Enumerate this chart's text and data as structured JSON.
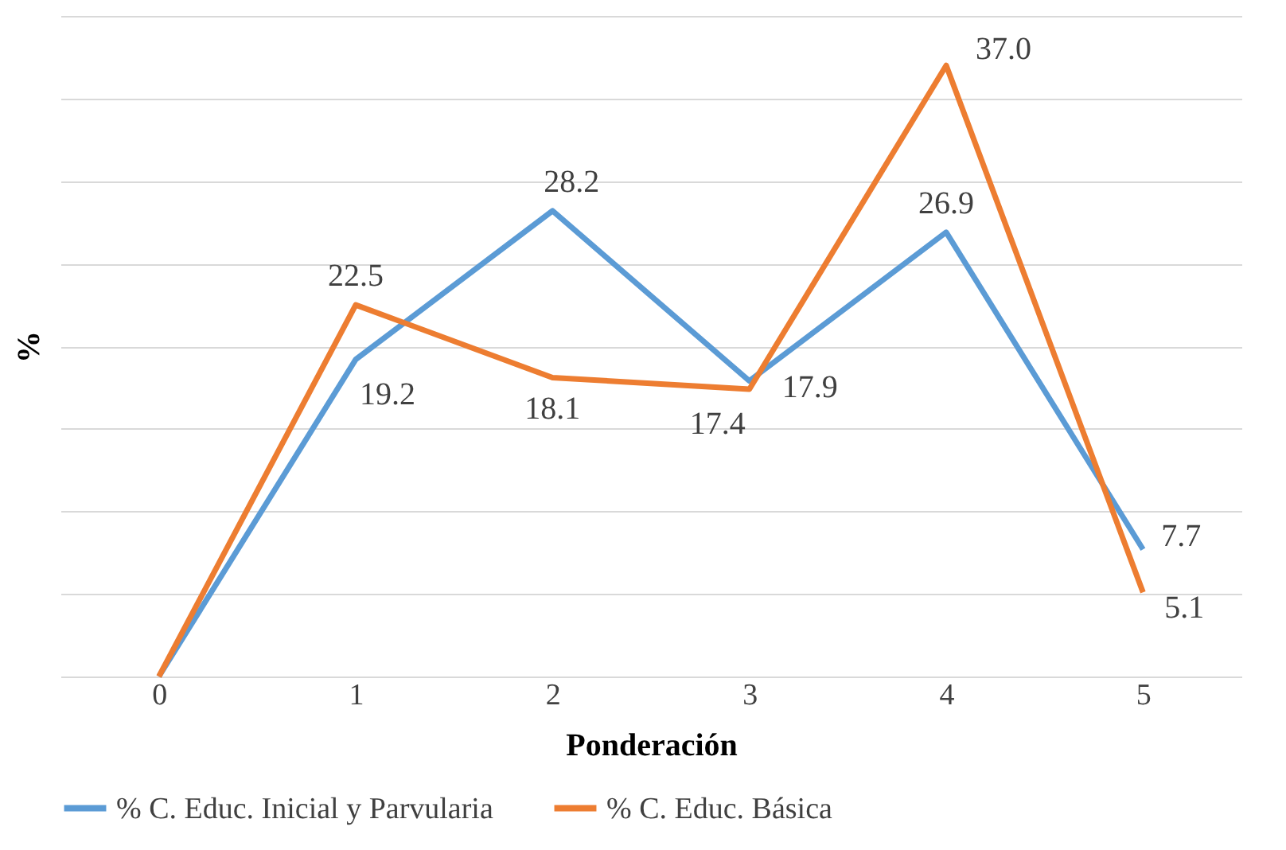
{
  "chart_data": {
    "type": "line",
    "xlabel": "Ponderación",
    "ylabel": "%",
    "categories": [
      "0",
      "1",
      "2",
      "3",
      "4",
      "5"
    ],
    "series": [
      {
        "name": "% C. Educ. Inicial y Parvularia",
        "color": "#5b9bd5",
        "values": [
          0,
          19.2,
          28.2,
          17.9,
          26.9,
          7.7
        ],
        "value_labels": [
          null,
          "19.2",
          "28.2",
          "17.9",
          "26.9",
          "7.7"
        ]
      },
      {
        "name": "% C. Educ. Básica",
        "color": "#ed7d31",
        "values": [
          0,
          22.5,
          18.1,
          17.4,
          37.0,
          5.1
        ],
        "value_labels": [
          null,
          "22.5",
          "18.1",
          "17.4",
          "37.0",
          "5.1"
        ]
      }
    ],
    "ylim": [
      0,
      40
    ],
    "yticks": [
      {
        "value": 0,
        "label": null
      },
      {
        "value": 5,
        "label": null
      },
      {
        "value": 10,
        "label": null
      },
      {
        "value": 15,
        "label": null
      },
      {
        "value": 20,
        "label": null
      },
      {
        "value": 25,
        "label": null
      },
      {
        "value": 30,
        "label": null
      },
      {
        "value": 35,
        "label": null
      },
      {
        "value": 40,
        "label": null
      }
    ],
    "grid": "y",
    "legend": "bottom",
    "tick_labels": "x",
    "marker": "none",
    "line_style": "solid"
  }
}
